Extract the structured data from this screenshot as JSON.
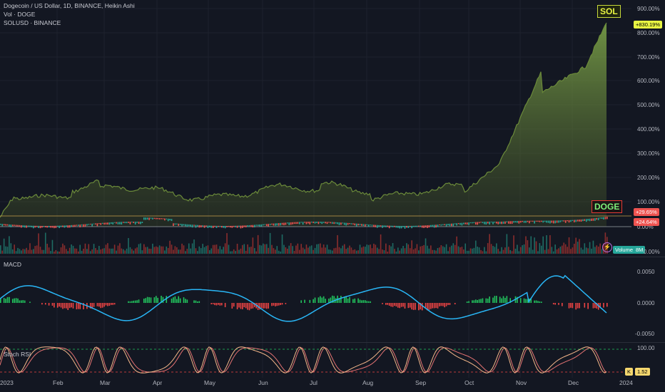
{
  "legend": {
    "title": "Dogecoin / US Dollar, 1D, BINANCE, Heikin Ashi",
    "vol": "Vol · DOGE",
    "compare": "SOLUSD · BINANCE"
  },
  "price_axis": [
    "900.00%",
    "800.00%",
    "700.00%",
    "600.00%",
    "500.00%",
    "400.00%",
    "300.00%",
    "200.00%",
    "100.00%",
    "0.00%"
  ],
  "volume_axis_tail": "0.00%",
  "macd": {
    "label": "MACD",
    "axis": [
      "0.0050",
      "0.0000",
      "-0.0050"
    ]
  },
  "stoch": {
    "label": "Stoch RSI",
    "axis_top": "100.00",
    "k_label": "K",
    "k_value": "1.52"
  },
  "badges": {
    "sol_tag": "SOL",
    "sol_pct": "+830.19%",
    "doge_tag": "DOGE",
    "doge_pct1": "+29.65%",
    "doge_pct2": "+24.64%",
    "volume_btn": "Volume",
    "volume_val": "8M"
  },
  "time_axis": [
    "2023",
    "Feb",
    "Mar",
    "Apr",
    "May",
    "Jun",
    "Jul",
    "Aug",
    "Sep",
    "Oct",
    "Nov",
    "Dec",
    "2024"
  ],
  "colors": {
    "bg": "#131722",
    "sol_line": "#6b8a3a",
    "sol_fill": "#5b7a2e",
    "up": "#26a69a",
    "down": "#ef5350",
    "macd_line": "#29b6f6",
    "hist_up": "#22c55e",
    "hist_down": "#ef4444",
    "stoch_k": "#f5b78a",
    "stoch_d": "#e57373",
    "grid": "#1e222d"
  },
  "icons": {
    "lightning": "lightning-icon"
  }
}
